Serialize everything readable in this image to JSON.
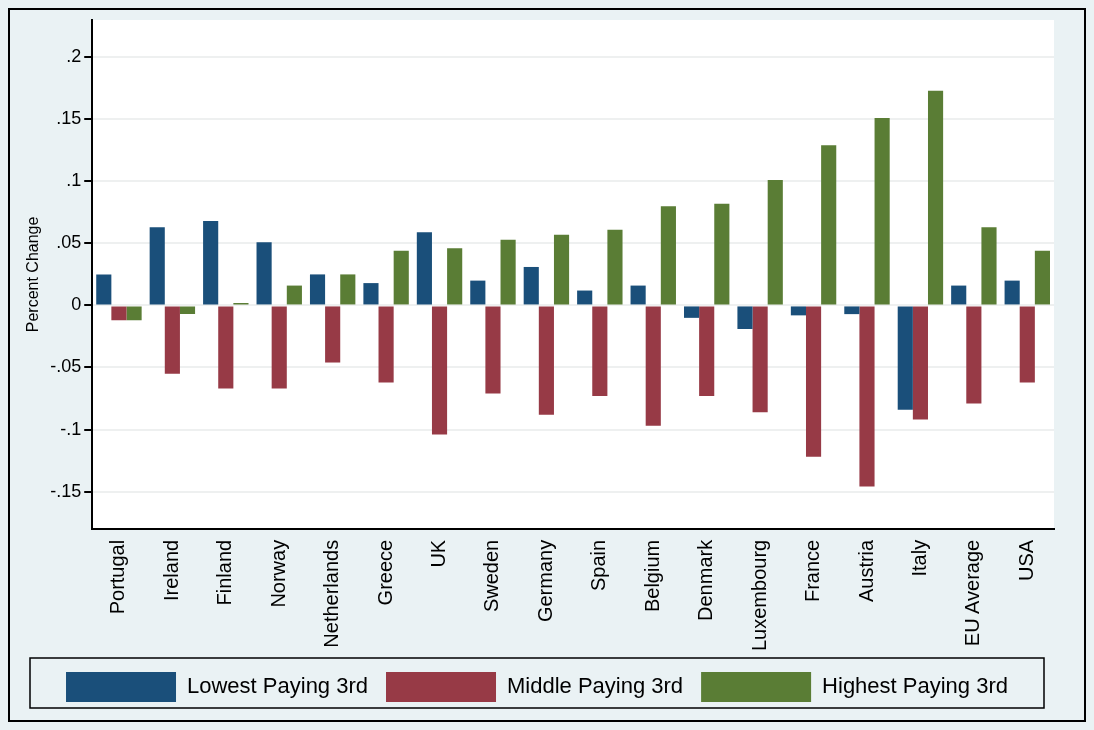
{
  "chart_data": {
    "type": "bar",
    "ylabel": "Percent Change",
    "categories": [
      "Portugal",
      "Ireland",
      "Finland",
      "Norway",
      "Netherlands",
      "Greece",
      "UK",
      "Sweden",
      "Germany",
      "Spain",
      "Belgium",
      "Denmark",
      "Luxembourg",
      "France",
      "Austria",
      "Italy",
      "EU Average",
      "USA"
    ],
    "series": [
      {
        "name": "Lowest Paying 3rd",
        "color": "#1a4f7a",
        "values": [
          0.025,
          0.063,
          0.068,
          0.051,
          0.025,
          0.018,
          0.059,
          0.02,
          0.031,
          0.012,
          0.016,
          -0.01,
          -0.019,
          -0.008,
          -0.007,
          -0.084,
          0.016,
          0.02
        ]
      },
      {
        "name": "Middle Paying 3rd",
        "color": "#973a46",
        "values": [
          -0.012,
          -0.055,
          -0.067,
          -0.067,
          -0.046,
          -0.062,
          -0.104,
          -0.071,
          -0.088,
          -0.073,
          -0.097,
          -0.073,
          -0.086,
          -0.122,
          -0.146,
          -0.092,
          -0.079,
          -0.062
        ]
      },
      {
        "name": "Highest Paying 3rd",
        "color": "#5a7d35",
        "values": [
          -0.012,
          -0.007,
          0.002,
          0.016,
          0.025,
          0.044,
          0.046,
          0.053,
          0.057,
          0.061,
          0.08,
          0.082,
          0.101,
          0.129,
          0.151,
          0.173,
          0.063,
          0.044
        ]
      }
    ],
    "ylim": [
      -0.18,
      0.23
    ],
    "yticks": [
      {
        "value": -0.15,
        "label": "-.15"
      },
      {
        "value": -0.1,
        "label": "-.1"
      },
      {
        "value": -0.05,
        "label": "-.05"
      },
      0,
      {
        "value": 0.05,
        "label": ".05"
      },
      {
        "value": 0.1,
        "label": ".1"
      },
      {
        "value": 0.15,
        "label": ".15"
      },
      {
        "value": 0.2,
        "label": ".2"
      }
    ],
    "grid": "y",
    "legend": "bottom"
  }
}
